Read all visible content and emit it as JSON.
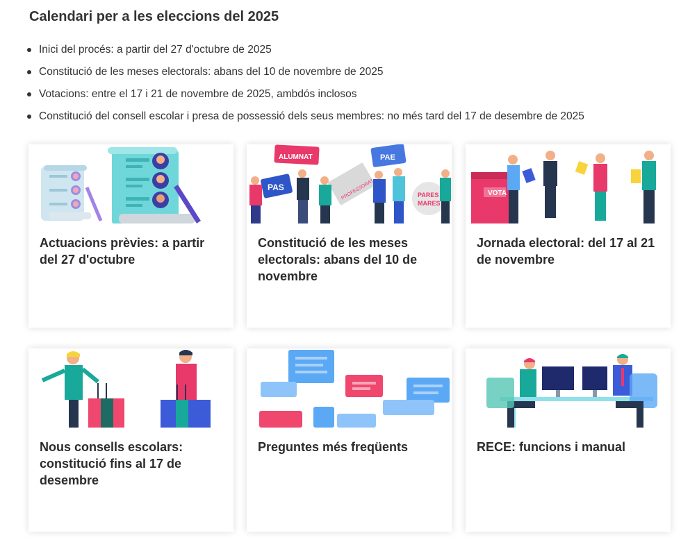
{
  "calendar": {
    "title": "Calendari per a les eleccions del 2025",
    "items": [
      "Inici del procés: a partir del 27 d'octubre de 2025",
      "Constitució de les meses electorals: abans del 10 de novembre de 2025",
      "Votacions: entre el 17 i 21 de novembre de 2025, ambdós inclosos",
      "Constitució del consell escolar i presa de possessió dels seus membres: no més tard del 17 de desembre de 2025"
    ]
  },
  "cards": [
    {
      "title": "Actuacions prèvies: a partir del 27 d'octubre",
      "illustration": "documents-list-illustration"
    },
    {
      "title": "Constitució de les meses electorals: abans del 10 de novembre",
      "illustration": "groups-signs-illustration",
      "signs": [
        "ALUMNAT",
        "PAS",
        "PROFESSORAT",
        "PAE",
        "PARES",
        "MARES"
      ]
    },
    {
      "title": "Jornada electoral: del 17 al 21 de novembre",
      "illustration": "ballot-box-illustration",
      "ballot_label": "VOTA"
    },
    {
      "title": "Nous consells escolars: constitució fins al 17 de desembre",
      "illustration": "podium-speakers-illustration"
    },
    {
      "title": "Preguntes més freqüents",
      "illustration": "chat-bubbles-illustration"
    },
    {
      "title": "RECE: funcions i manual",
      "illustration": "office-desk-illustration"
    }
  ],
  "colors": {
    "accent_pink": "#f0476e",
    "accent_blue": "#3b5bd9",
    "accent_teal": "#18a99a",
    "light_blue": "#5ba8f5",
    "yellow": "#f7d43a"
  }
}
